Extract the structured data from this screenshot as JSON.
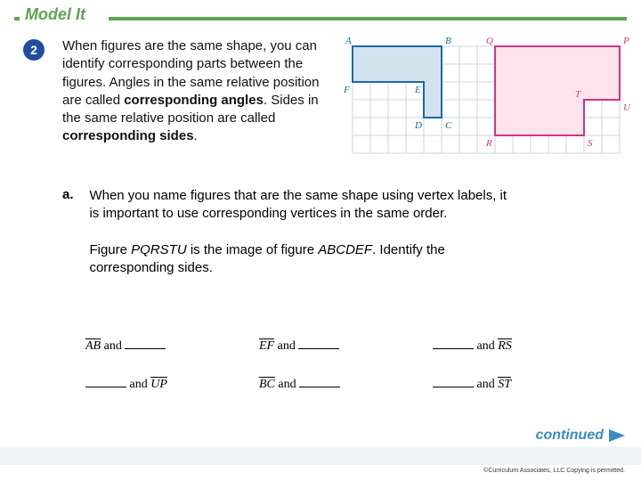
{
  "colors": {
    "accent": "#5aa64f",
    "badge_bg": "#1f4e9c",
    "blue_stroke": "#1a6aa8",
    "blue_fill": "#d2e3ee",
    "pink_stroke": "#d63384",
    "pink_fill": "#fce3ec",
    "grid": "#cfd4d8",
    "footer": "#eef2f5",
    "arrow": "#3a8cc4"
  },
  "header": {
    "title": "Model It"
  },
  "badge": {
    "number": "2"
  },
  "intro": {
    "text_pre": "When figures are the same shape, you can identify corresponding parts between the figures. Angles in the same relative position are called ",
    "bold1": "corresponding angles",
    "mid": ". Sides in the same relative position are called ",
    "bold2": "corresponding sides",
    "post": "."
  },
  "diagram": {
    "cell_size": 20,
    "cols": 15,
    "rows": 6,
    "blue": {
      "label_color": "#1a6aa8",
      "points_grid": [
        [
          0,
          0
        ],
        [
          5,
          0
        ],
        [
          5,
          4
        ],
        [
          4,
          4
        ],
        [
          4,
          2
        ],
        [
          0,
          2
        ]
      ],
      "labels": {
        "A": [
          0,
          0
        ],
        "B": [
          5,
          0
        ],
        "C": [
          5,
          4
        ],
        "D": [
          4,
          4
        ],
        "E": [
          4,
          2
        ],
        "F": [
          0,
          2
        ]
      }
    },
    "pink": {
      "label_color": "#d63384",
      "points_grid": [
        [
          8,
          0
        ],
        [
          15,
          0
        ],
        [
          15,
          3
        ],
        [
          13,
          3
        ],
        [
          13,
          5
        ],
        [
          8,
          5
        ]
      ],
      "labels": {
        "Q": [
          8,
          0
        ],
        "P": [
          15,
          0
        ],
        "U": [
          15,
          3
        ],
        "T": [
          13,
          3
        ],
        "S": [
          13,
          5
        ],
        "R": [
          8,
          5
        ]
      }
    }
  },
  "part_a": {
    "label": "a.",
    "para1": "When you name figures that are the same shape using vertex labels, it is important to use corresponding vertices in the same order.",
    "para2_pre": "Figure ",
    "fig1": "PQRSTU",
    "para2_mid": " is the image of figure ",
    "fig2": "ABCDEF",
    "para2_post": ". Identify the corresponding sides."
  },
  "blanks": {
    "row1": [
      {
        "left": "AB",
        "word": "and",
        "right_blank": true
      },
      {
        "left": "EF",
        "word": "and",
        "right_blank": true
      },
      {
        "left_blank": true,
        "word": "and",
        "right": "RS"
      }
    ],
    "row2": [
      {
        "left_blank": true,
        "word": "and",
        "right": "UP"
      },
      {
        "left": "BC",
        "word": "and",
        "right_blank": true
      },
      {
        "left_blank": true,
        "word": "and",
        "right": "ST"
      }
    ]
  },
  "continued": {
    "text": "continued"
  },
  "copyright": "©Curriculum Associates, LLC    Copying is permitted."
}
